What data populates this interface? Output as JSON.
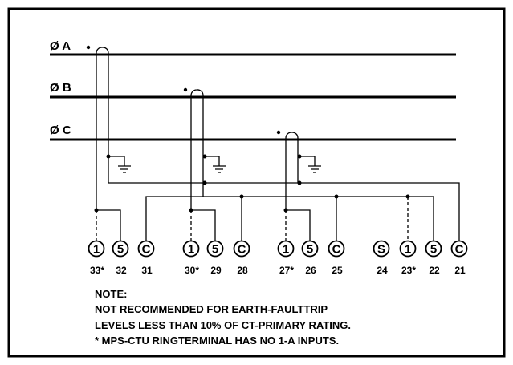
{
  "phases": [
    "Ø A",
    "Ø B",
    "Ø C"
  ],
  "terminals": [
    {
      "symbol": "1",
      "number": "33*"
    },
    {
      "symbol": "5",
      "number": "32"
    },
    {
      "symbol": "C",
      "number": "31"
    },
    {
      "symbol": "1",
      "number": "30*"
    },
    {
      "symbol": "5",
      "number": "29"
    },
    {
      "symbol": "C",
      "number": "28"
    },
    {
      "symbol": "1",
      "number": "27*"
    },
    {
      "symbol": "5",
      "number": "26"
    },
    {
      "symbol": "C",
      "number": "25"
    },
    {
      "symbol": "S",
      "number": "24"
    },
    {
      "symbol": "1",
      "number": "23*"
    },
    {
      "symbol": "5",
      "number": "22"
    },
    {
      "symbol": "C",
      "number": "21"
    }
  ],
  "note": {
    "title": "NOTE:",
    "lines": [
      "NOT RECOMMENDED FOR EARTH-FAULTTRIP",
      "LEVELS LESS THAN 10% OF CT-PRIMARY RATING.",
      "* MPS-CTU RINGTERMINAL HAS NO 1-A INPUTS."
    ]
  }
}
